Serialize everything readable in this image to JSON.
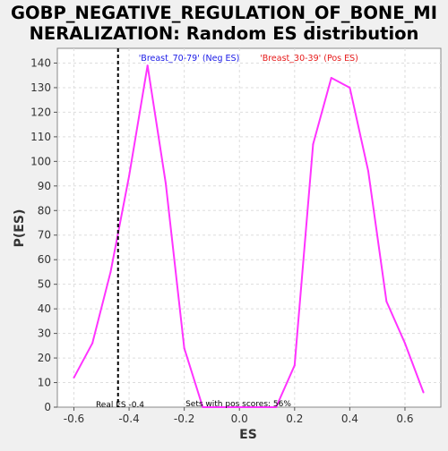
{
  "chart_data": {
    "type": "line",
    "title_lines": [
      "GOBP_NEGATIVE_REGULATION_OF_BONE_MI",
      "NERALIZATION: Random ES distribution"
    ],
    "xlabel": "ES",
    "ylabel": "P(ES)",
    "xlim": [
      -0.66,
      0.73
    ],
    "ylim": [
      0,
      146
    ],
    "x_ticks": [
      -0.6,
      -0.4,
      -0.2,
      0.0,
      0.2,
      0.4,
      0.6
    ],
    "x_tick_labels": [
      "-0.6",
      "-0.4",
      "-0.2",
      "0.0",
      "0.2",
      "0.4",
      "0.6"
    ],
    "y_ticks": [
      0,
      10,
      20,
      30,
      40,
      50,
      60,
      70,
      80,
      90,
      100,
      110,
      120,
      130,
      140
    ],
    "y_tick_labels": [
      "0",
      "10",
      "20",
      "30",
      "40",
      "50",
      "60",
      "70",
      "80",
      "90",
      "100",
      "110",
      "120",
      "130",
      "140"
    ],
    "grid": true,
    "series": [
      {
        "color": "#ff33ff",
        "x": [
          -0.6,
          -0.533,
          -0.467,
          -0.4,
          -0.333,
          -0.267,
          -0.2,
          -0.133,
          -0.067,
          0.0,
          0.067,
          0.133,
          0.2,
          0.267,
          0.333,
          0.4,
          0.467,
          0.533,
          0.6,
          0.667
        ],
        "y": [
          12,
          26,
          55,
          94,
          139,
          91,
          24,
          0,
          0,
          0,
          0,
          0,
          17,
          107,
          134,
          130,
          96,
          43,
          26,
          6
        ]
      }
    ],
    "real_es": -0.44,
    "annotations": {
      "neg_label": "'Breast_70-79' (Neg ES)",
      "pos_label": "'Breast_30-39' (Pos ES)",
      "real_es_label": "Real ES -0.4",
      "pos_scores_label": "Sets with pos scores: 56%"
    },
    "colors": {
      "neg_label": "#1a1ae6",
      "pos_label": "#e61a1a",
      "plot_bg": "#ffffff",
      "page_bg": "#f0f0f0"
    }
  }
}
